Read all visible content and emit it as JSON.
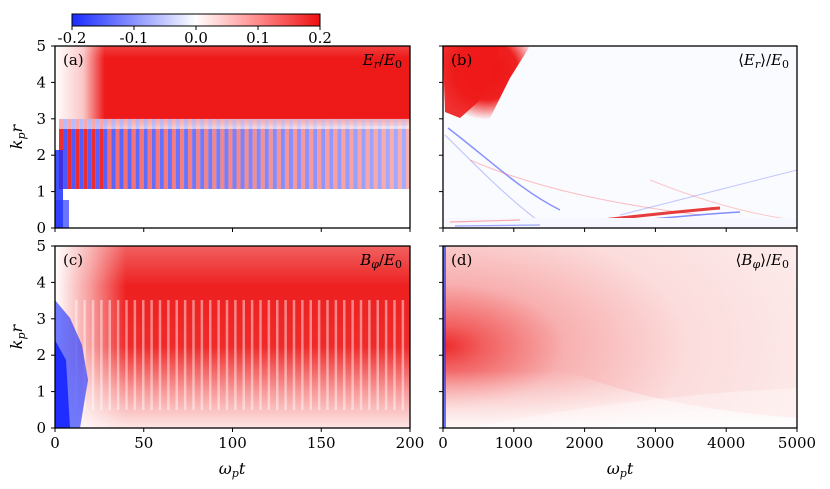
{
  "colorbar": {
    "ticks": [
      "-0.2",
      "-0.1",
      "0.0",
      "0.1",
      "0.2"
    ],
    "values": [
      -0.2,
      -0.1,
      0.0,
      0.1,
      0.2
    ],
    "colors": {
      "neg": "#1f2eff",
      "zero": "#ffffff",
      "pos": "#ef1010"
    }
  },
  "chart_data": [
    {
      "type": "heatmap",
      "panel": "(a)",
      "quantity": "E_r/E_0",
      "xlabel": "",
      "ylabel": "k_p r",
      "xlim": [
        0,
        200
      ],
      "ylim": [
        0,
        5
      ],
      "xticks": [
        0,
        50,
        100,
        150,
        200
      ],
      "yticks": [
        0,
        1,
        2,
        3,
        4,
        5
      ],
      "xtick_labels_shown": false
    },
    {
      "type": "heatmap",
      "panel": "(b)",
      "quantity": "⟨E_r⟩/E_0",
      "xlabel": "",
      "ylabel": "",
      "xlim": [
        0,
        5000
      ],
      "ylim": [
        0,
        5
      ],
      "xtick_labels_shown": false,
      "ytick_labels_shown": false
    },
    {
      "type": "heatmap",
      "panel": "(c)",
      "quantity": "B_φ/E_0",
      "xlabel": "ω_p t",
      "ylabel": "k_p r",
      "xlim": [
        0,
        200
      ],
      "ylim": [
        0,
        5
      ],
      "xticks": [
        0,
        50,
        100,
        150,
        200
      ],
      "yticks": [
        0,
        1,
        2,
        3,
        4,
        5
      ]
    },
    {
      "type": "heatmap",
      "panel": "(d)",
      "quantity": "⟨B_φ⟩/E_0",
      "xlabel": "ω_p t",
      "ylabel": "",
      "xlim": [
        0,
        5000
      ],
      "ylim": [
        0,
        5
      ],
      "xticks": [
        0,
        1000,
        2000,
        3000,
        4000,
        5000
      ]
    }
  ],
  "panels": {
    "a": {
      "label": "(a)"
    },
    "b": {
      "label": "(b)"
    },
    "c": {
      "label": "(c)"
    },
    "d": {
      "label": "(d)"
    }
  },
  "axes": {
    "y_ticks": [
      "0",
      "1",
      "2",
      "3",
      "4",
      "5"
    ],
    "x_ticks_left": [
      "0",
      "50",
      "100",
      "150",
      "200"
    ],
    "x_ticks_right": [
      "0",
      "1000",
      "2000",
      "3000",
      "4000",
      "5000"
    ]
  }
}
